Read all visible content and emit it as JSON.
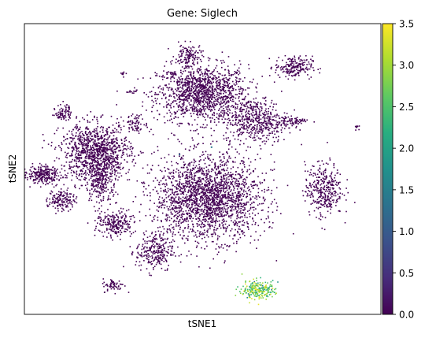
{
  "chart_data": {
    "type": "scatter",
    "title": "Gene: Siglech",
    "xlabel": "tSNE1",
    "ylabel": "tSNE2",
    "x_ticks": [],
    "y_ticks": [],
    "colorbar": {
      "colormap": "viridis",
      "range": [
        0.0,
        3.5
      ],
      "ticks": [
        "0.0",
        "0.5",
        "1.0",
        "1.5",
        "2.0",
        "2.5",
        "3.0",
        "3.5"
      ],
      "tick_values": [
        0.0,
        0.5,
        1.0,
        1.5,
        2.0,
        2.5,
        3.0,
        3.5
      ]
    },
    "point_color_low": "#440154",
    "clusters": [
      {
        "id": "c-top-center",
        "center": [
          0.0,
          0.52
        ],
        "spread": [
          0.17,
          0.13
        ],
        "size": 1300,
        "expression": 0.0
      },
      {
        "id": "c-top-peak",
        "center": [
          -0.08,
          0.78
        ],
        "spread": [
          0.05,
          0.05
        ],
        "size": 120,
        "expression": 0.0
      },
      {
        "id": "c-top-right",
        "center": [
          0.51,
          0.7
        ],
        "spread": [
          0.07,
          0.05
        ],
        "size": 200,
        "expression": 0.0
      },
      {
        "id": "c-right-mid",
        "center": [
          0.3,
          0.33
        ],
        "spread": [
          0.12,
          0.1
        ],
        "size": 500,
        "expression": 0.0
      },
      {
        "id": "c-right-small",
        "center": [
          0.52,
          0.33
        ],
        "spread": [
          0.05,
          0.02
        ],
        "size": 60,
        "expression": 0.0
      },
      {
        "id": "c-far-right",
        "center": [
          0.68,
          -0.14
        ],
        "spread": [
          0.07,
          0.12
        ],
        "size": 350,
        "expression": 0.0
      },
      {
        "id": "c-center-big",
        "center": [
          0.03,
          -0.2
        ],
        "spread": [
          0.2,
          0.19
        ],
        "size": 2100,
        "expression": 0.0
      },
      {
        "id": "c-left-mid",
        "center": [
          -0.6,
          0.12
        ],
        "spread": [
          0.13,
          0.13
        ],
        "size": 1000,
        "expression": 0.0
      },
      {
        "id": "c-left-lower",
        "center": [
          -0.57,
          -0.07
        ],
        "spread": [
          0.06,
          0.12
        ],
        "size": 300,
        "expression": 0.0
      },
      {
        "id": "c-far-left",
        "center": [
          -0.9,
          -0.04
        ],
        "spread": [
          0.07,
          0.04
        ],
        "size": 250,
        "expression": 0.0
      },
      {
        "id": "c-left-low",
        "center": [
          -0.79,
          -0.21
        ],
        "spread": [
          0.05,
          0.05
        ],
        "size": 150,
        "expression": 0.0
      },
      {
        "id": "c-upper-left",
        "center": [
          -0.78,
          0.39
        ],
        "spread": [
          0.03,
          0.04
        ],
        "size": 80,
        "expression": 0.0
      },
      {
        "id": "c-left-small",
        "center": [
          -0.37,
          0.31
        ],
        "spread": [
          0.04,
          0.04
        ],
        "size": 70,
        "expression": 0.0
      },
      {
        "id": "c-bottom-left",
        "center": [
          -0.49,
          -0.38
        ],
        "spread": [
          0.07,
          0.06
        ],
        "size": 220,
        "expression": 0.0
      },
      {
        "id": "c-bottom-left2",
        "center": [
          -0.27,
          -0.57
        ],
        "spread": [
          0.07,
          0.09
        ],
        "size": 260,
        "expression": 0.0
      },
      {
        "id": "c-bottom-tiny",
        "center": [
          -0.5,
          -0.8
        ],
        "spread": [
          0.04,
          0.03
        ],
        "size": 60,
        "expression": 0.0
      },
      {
        "id": "c-pdc",
        "center": [
          0.31,
          -0.83
        ],
        "spread": [
          0.06,
          0.04
        ],
        "size": 240,
        "expression": 2.7
      },
      {
        "id": "c-tiny-1",
        "center": [
          -0.45,
          0.66
        ],
        "spread": [
          0.01,
          0.01
        ],
        "size": 8,
        "expression": 0.0
      },
      {
        "id": "c-tiny-2",
        "center": [
          -0.17,
          0.65
        ],
        "spread": [
          0.02,
          0.02
        ],
        "size": 15,
        "expression": 0.0
      },
      {
        "id": "c-tiny-3",
        "center": [
          -0.4,
          0.53
        ],
        "spread": [
          0.02,
          0.01
        ],
        "size": 12,
        "expression": 0.0
      },
      {
        "id": "c-tiny-4",
        "center": [
          0.86,
          0.29
        ],
        "spread": [
          0.01,
          0.01
        ],
        "size": 10,
        "expression": 0.0
      }
    ],
    "xlim": [
      -1.0,
      1.0
    ],
    "ylim": [
      -1.0,
      1.0
    ],
    "grid": false,
    "legend": "colorbar-right"
  }
}
